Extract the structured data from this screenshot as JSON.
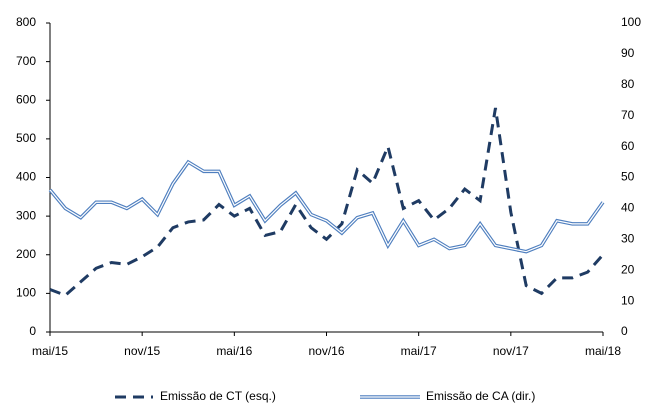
{
  "chart_data": {
    "type": "line",
    "categories": [
      "mai/15",
      null,
      null,
      null,
      null,
      null,
      "nov/15",
      null,
      null,
      null,
      null,
      null,
      "mai/16",
      null,
      null,
      null,
      null,
      null,
      "nov/16",
      null,
      null,
      null,
      null,
      null,
      "mai/17",
      null,
      null,
      null,
      null,
      null,
      "nov/17",
      null,
      null,
      null,
      null,
      null,
      "mai/18"
    ],
    "series": [
      {
        "name": "Emissão de CT (esq.)",
        "color": "#1f3b63",
        "style": "dashed",
        "axis": "y",
        "values": [
          110,
          95,
          130,
          165,
          180,
          175,
          195,
          220,
          270,
          285,
          290,
          330,
          300,
          320,
          250,
          260,
          330,
          270,
          240,
          280,
          420,
          385,
          480,
          320,
          340,
          290,
          320,
          370,
          340,
          580,
          310,
          120,
          100,
          140,
          140,
          155,
          200
        ]
      },
      {
        "name": "Emissão de CA (dir.)",
        "color": "#4f7fbf",
        "style": "double",
        "axis": "y2",
        "values": [
          46,
          40,
          37,
          42,
          42,
          40,
          43,
          38,
          48,
          55,
          52,
          52,
          41,
          44,
          36,
          41,
          45,
          38,
          36,
          32,
          37,
          38.5,
          28,
          36,
          28,
          30,
          27,
          28,
          35,
          28,
          27,
          26,
          28,
          36,
          35,
          35,
          42
        ]
      }
    ],
    "ylim": [
      0,
      800
    ],
    "yticks": [
      0,
      100,
      200,
      300,
      400,
      500,
      600,
      700,
      800
    ],
    "y2lim": [
      0,
      100
    ],
    "y2ticks": [
      0,
      10,
      20,
      30,
      40,
      50,
      60,
      70,
      80,
      90,
      100
    ],
    "grid": false
  }
}
